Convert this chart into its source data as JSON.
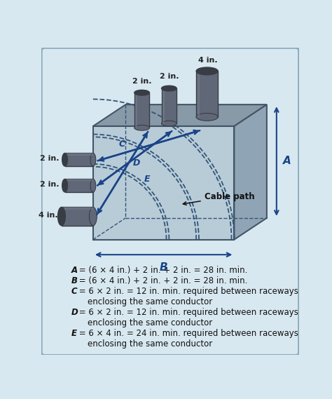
{
  "bg_color": "#d8e8f0",
  "front_color": "#b8ccd8",
  "top_color": "#8899a8",
  "right_color": "#8fa5b5",
  "edge_color": "#445566",
  "conduit_color": "#606878",
  "conduit_dark": "#383c44",
  "conduit_light": "#808898",
  "arrow_color": "#1a4488",
  "dashed_color": "#335577",
  "dim_color": "#1a4488",
  "text_color": "#111111",
  "label_color": "#1a3d88",
  "border_color": "#88aabb",
  "notes": [
    [
      "italic",
      "A",
      " = (6 × 4 in.) + 2 in. + 2 in. = 28 in. min."
    ],
    [
      "italic",
      "B",
      " = (6 × 4 in.) + 2 in. + 2 in. = 28 in. min."
    ],
    [
      "italic",
      "C",
      " = 6 × 2 in. = 12 in. min. required between raceways"
    ],
    [
      "normal",
      "",
      "        enclosing the same conductor"
    ],
    [
      "italic",
      "D",
      " = 6 × 2 in. = 12 in. min. required between raceways"
    ],
    [
      "normal",
      "",
      "        enclosing the same conductor"
    ],
    [
      "italic",
      "E",
      " = 6 × 4 in. = 24 in. min. required between raceways"
    ],
    [
      "normal",
      "",
      "        enclosing the same conductor"
    ]
  ]
}
